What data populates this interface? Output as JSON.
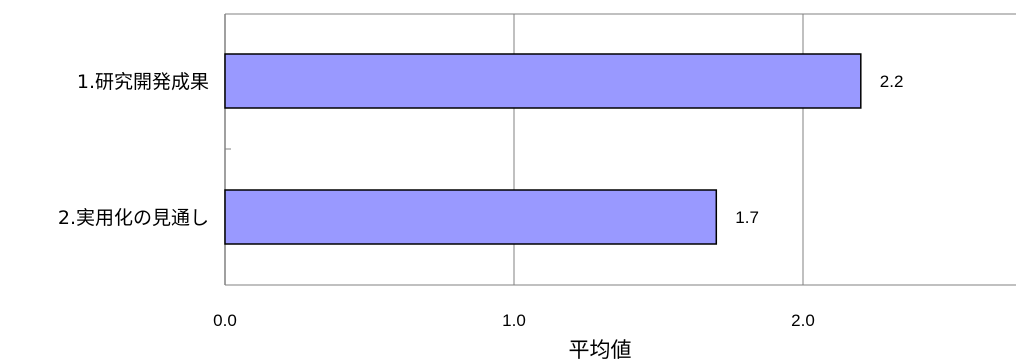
{
  "chart_data": {
    "type": "bar",
    "orientation": "horizontal",
    "categories": [
      "1.研究開発成果",
      "2.実用化の見通し"
    ],
    "values": [
      2.2,
      1.7
    ],
    "data_labels": [
      "2.2",
      "1.7"
    ],
    "xlabel": "平均値",
    "xlim": [
      0,
      2.75
    ],
    "xticks": [
      0,
      1,
      2
    ],
    "xtick_labels": [
      "0.0",
      "1.0",
      "2.0"
    ],
    "grid": true,
    "bar_color": "#9999ff",
    "bar_edge_color": "#000000",
    "axis_color": "#808080"
  }
}
